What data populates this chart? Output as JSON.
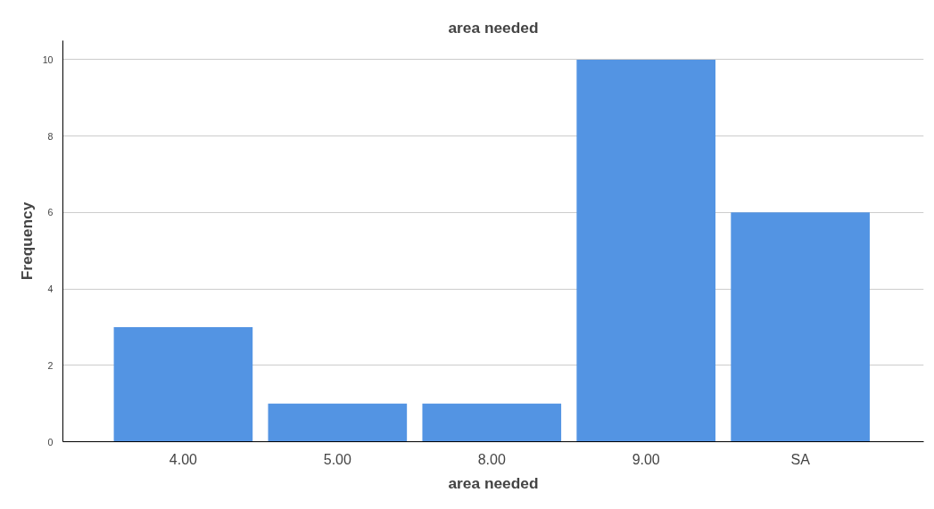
{
  "chart_data": {
    "type": "bar",
    "title": "area needed",
    "xlabel": "area needed",
    "ylabel": "Frequency",
    "categories": [
      "4.00",
      "5.00",
      "8.00",
      "9.00",
      "SA"
    ],
    "values": [
      3,
      1,
      1,
      10,
      6
    ],
    "color": "#5394e3",
    "ylim": [
      0,
      10.5
    ],
    "yticks": [
      0,
      2,
      4,
      6,
      8,
      10
    ],
    "grid": "y"
  }
}
